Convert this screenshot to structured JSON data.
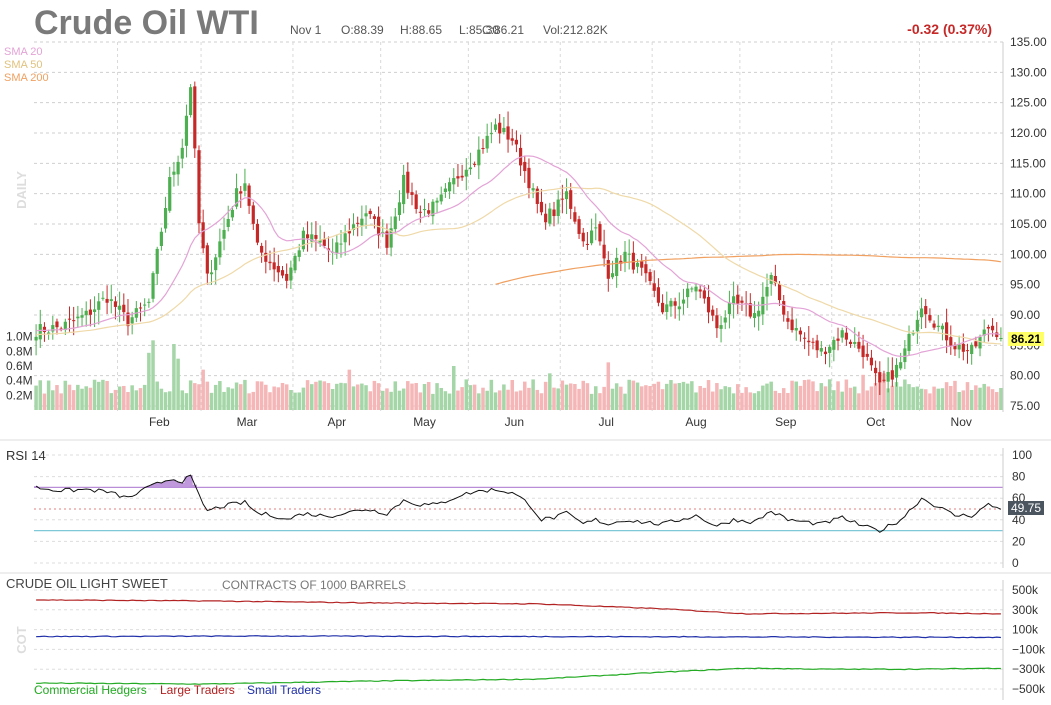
{
  "header": {
    "title": "Crude Oil WTI",
    "date": "Nov 1",
    "open": "O:88.39",
    "high": "H:88.65",
    "low": "L:85.30",
    "close": "C:86.21",
    "volume": "Vol:212.82K",
    "change": "-0.32 (0.37%)"
  },
  "colors": {
    "up": "#4caf50",
    "down": "#c62828",
    "vol_up": "#a5d6a7",
    "vol_down": "#f4b6b6",
    "sma20": "#e3a3d6",
    "sma50": "#efd9a8",
    "sma200": "#f0a060",
    "rsi_line": "#111111",
    "rsi_over": "#b98dd8",
    "rsi_under": "#7ec8d8",
    "commercial": "#22aa22",
    "large": "#b22222",
    "small": "#1f2fa8",
    "change": "#c62828",
    "last_price_bg": "#ffff66"
  },
  "chart_data": [
    {
      "type": "candlestick",
      "name": "price",
      "period_label": "DAILY",
      "legend": [
        "SMA 20",
        "SMA 50",
        "SMA 200"
      ],
      "ylim": [
        75,
        135
      ],
      "y_ticks": [
        "135.00",
        "130.00",
        "125.00",
        "120.00",
        "115.00",
        "110.00",
        "105.00",
        "100.00",
        "95.00",
        "90.00",
        "85.00",
        "80.00",
        "75.00"
      ],
      "x_months": [
        "Feb",
        "Mar",
        "Apr",
        "May",
        "Jun",
        "Jul",
        "Aug",
        "Sep",
        "Oct",
        "Nov"
      ],
      "last_price": "86.21",
      "volume_ticks": [
        "1.0M",
        "0.8M",
        "0.6M",
        "0.4M",
        "0.2M"
      ],
      "volume_max": 1.2,
      "anchors": [
        [
          0,
          87.5
        ],
        [
          6,
          88
        ],
        [
          12,
          90
        ],
        [
          17,
          93
        ],
        [
          22,
          89
        ],
        [
          27,
          92
        ],
        [
          32,
          112
        ],
        [
          35,
          118
        ],
        [
          37,
          128
        ],
        [
          39,
          105
        ],
        [
          41,
          96
        ],
        [
          44,
          102
        ],
        [
          48,
          110
        ],
        [
          50,
          112
        ],
        [
          53,
          101
        ],
        [
          57,
          98
        ],
        [
          60,
          96
        ],
        [
          64,
          103
        ],
        [
          68,
          102
        ],
        [
          71,
          100
        ],
        [
          75,
          104
        ],
        [
          79,
          107
        ],
        [
          84,
          102
        ],
        [
          88,
          112
        ],
        [
          92,
          107
        ],
        [
          96,
          108
        ],
        [
          101,
          113
        ],
        [
          105,
          116
        ],
        [
          110,
          121
        ],
        [
          114,
          119
        ],
        [
          118,
          112
        ],
        [
          121,
          106
        ],
        [
          124,
          107
        ],
        [
          127,
          110
        ],
        [
          131,
          102
        ],
        [
          134,
          104
        ],
        [
          137,
          97
        ],
        [
          141,
          100
        ],
        [
          145,
          97
        ],
        [
          150,
          91
        ],
        [
          154,
          92
        ],
        [
          158,
          95
        ],
        [
          163,
          88
        ],
        [
          167,
          92
        ],
        [
          172,
          90
        ],
        [
          176,
          96
        ],
        [
          180,
          89
        ],
        [
          184,
          86
        ],
        [
          188,
          84
        ],
        [
          193,
          87
        ],
        [
          198,
          84
        ],
        [
          202,
          78
        ],
        [
          207,
          82
        ],
        [
          212,
          92
        ],
        [
          216,
          88
        ],
        [
          220,
          85
        ],
        [
          224,
          84
        ],
        [
          228,
          88
        ],
        [
          231,
          87
        ]
      ],
      "volume_spikes": [
        [
          27,
          0.78
        ],
        [
          28,
          0.95
        ],
        [
          33,
          0.9
        ],
        [
          34,
          0.7
        ],
        [
          40,
          0.55
        ],
        [
          75,
          0.55
        ],
        [
          100,
          0.6
        ],
        [
          123,
          0.5
        ],
        [
          137,
          0.65
        ],
        [
          198,
          0.48
        ],
        [
          203,
          0.5
        ]
      ]
    },
    {
      "type": "line",
      "name": "rsi",
      "title": "RSI 14",
      "ylim": [
        0,
        100
      ],
      "y_ticks": [
        "100",
        "80",
        "60",
        "40",
        "20",
        "0"
      ],
      "overbought": 70,
      "oversold": 30,
      "last_value": "49.75",
      "anchors": [
        [
          0,
          70
        ],
        [
          6,
          67
        ],
        [
          12,
          68
        ],
        [
          17,
          66
        ],
        [
          22,
          60
        ],
        [
          27,
          70
        ],
        [
          32,
          78
        ],
        [
          35,
          76
        ],
        [
          37,
          80
        ],
        [
          39,
          62
        ],
        [
          41,
          48
        ],
        [
          44,
          52
        ],
        [
          48,
          55
        ],
        [
          50,
          56
        ],
        [
          53,
          46
        ],
        [
          57,
          44
        ],
        [
          60,
          40
        ],
        [
          64,
          46
        ],
        [
          68,
          44
        ],
        [
          71,
          44
        ],
        [
          75,
          47
        ],
        [
          79,
          50
        ],
        [
          84,
          46
        ],
        [
          88,
          58
        ],
        [
          92,
          54
        ],
        [
          96,
          54
        ],
        [
          101,
          62
        ],
        [
          105,
          66
        ],
        [
          110,
          68
        ],
        [
          114,
          65
        ],
        [
          118,
          55
        ],
        [
          121,
          40
        ],
        [
          124,
          42
        ],
        [
          127,
          46
        ],
        [
          131,
          36
        ],
        [
          134,
          40
        ],
        [
          137,
          36
        ],
        [
          141,
          40
        ],
        [
          145,
          38
        ],
        [
          150,
          36
        ],
        [
          154,
          40
        ],
        [
          158,
          44
        ],
        [
          163,
          34
        ],
        [
          167,
          40
        ],
        [
          172,
          38
        ],
        [
          176,
          48
        ],
        [
          180,
          40
        ],
        [
          184,
          38
        ],
        [
          188,
          36
        ],
        [
          193,
          42
        ],
        [
          198,
          34
        ],
        [
          202,
          30
        ],
        [
          207,
          40
        ],
        [
          212,
          60
        ],
        [
          216,
          52
        ],
        [
          220,
          44
        ],
        [
          224,
          44
        ],
        [
          228,
          54
        ],
        [
          231,
          49.75
        ]
      ]
    },
    {
      "type": "line",
      "name": "cot",
      "title": "CRUDE OIL LIGHT SWEET",
      "subtitle": "CONTRACTS OF 1000 BARRELS",
      "ylabel": "COT",
      "ylim": [
        -500,
        500
      ],
      "y_ticks": [
        "500k",
        "300k",
        "100k",
        "−100k",
        "−300k",
        "−500k"
      ],
      "series": [
        {
          "name": "Commercial Hedgers",
          "anchors": [
            [
              0,
              -440
            ],
            [
              40,
              -450
            ],
            [
              80,
              -420
            ],
            [
              120,
              -400
            ],
            [
              150,
              -330
            ],
            [
              170,
              -290
            ],
            [
              190,
              -300
            ],
            [
              210,
              -300
            ],
            [
              231,
              -290
            ]
          ]
        },
        {
          "name": "Large Traders",
          "anchors": [
            [
              0,
              400
            ],
            [
              40,
              390
            ],
            [
              80,
              370
            ],
            [
              120,
              360
            ],
            [
              150,
              310
            ],
            [
              170,
              260
            ],
            [
              190,
              265
            ],
            [
              210,
              270
            ],
            [
              231,
              260
            ]
          ]
        },
        {
          "name": "Small Traders",
          "anchors": [
            [
              0,
              30
            ],
            [
              60,
              35
            ],
            [
              120,
              30
            ],
            [
              180,
              25
            ],
            [
              231,
              22
            ]
          ]
        }
      ]
    }
  ]
}
